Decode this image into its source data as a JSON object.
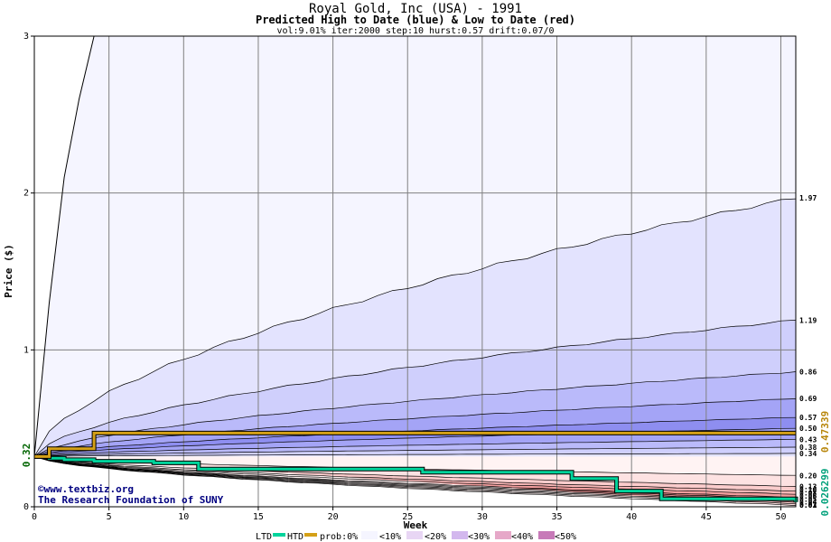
{
  "chart_data": {
    "type": "area",
    "title": "Royal Gold, Inc (USA) - 1991",
    "subtitle": "Predicted High to Date (blue) &  Low to Date (red)",
    "params": "vol:9.01% iter:2000 step:10 hurst:0.57 drift:0.07/0",
    "xlabel": "Week",
    "ylabel": "Price ($)",
    "xlim": [
      0,
      51
    ],
    "ylim": [
      0,
      3
    ],
    "x_ticks": [
      0,
      5,
      10,
      15,
      20,
      25,
      30,
      35,
      40,
      45,
      50
    ],
    "y_ticks": [
      0,
      1,
      2,
      3
    ],
    "grid": true,
    "start_price": 0.32,
    "start_label": "0.32",
    "htd_final_label": "0.47339",
    "ltd_final_label": "0.026299",
    "upper_labels": [
      "1.97",
      "1.19",
      "0.86",
      "0.69",
      "0.57",
      "0.50",
      "0.43",
      "0.38",
      "0.34"
    ],
    "lower_labels": [
      "0.20",
      "0.13",
      "0.10",
      "0.08",
      "0.06",
      "0.05",
      "0.04",
      "0.03",
      "0.02",
      "0.01"
    ],
    "upper_finals": [
      1.97,
      1.19,
      0.86,
      0.69,
      0.57,
      0.5,
      0.43,
      0.38,
      0.34
    ],
    "lower_finals": [
      0.2,
      0.13,
      0.1,
      0.08,
      0.06,
      0.05,
      0.04,
      0.03,
      0.02,
      0.01
    ],
    "outer_high_curve": {
      "x": [
        0,
        1,
        2,
        3,
        4
      ],
      "y": [
        0.32,
        1.3,
        2.1,
        2.6,
        3.0
      ]
    },
    "htd_series": {
      "x": [
        0,
        1,
        2,
        3,
        3.7,
        4,
        25,
        51
      ],
      "y": [
        0.32,
        0.37,
        0.37,
        0.37,
        0.37,
        0.47,
        0.47,
        0.47
      ]
    },
    "ltd_series": {
      "x": [
        0,
        1,
        2,
        3,
        4,
        8,
        11,
        26,
        36,
        39,
        42,
        51
      ],
      "y": [
        0.32,
        0.31,
        0.3,
        0.3,
        0.29,
        0.28,
        0.24,
        0.22,
        0.18,
        0.1,
        0.05,
        0.03
      ]
    },
    "band_colors_upper": [
      "#f5f5ff",
      "#e3e3fe",
      "#cfcffc",
      "#babafa",
      "#a4a4f6",
      "#8e8ef0",
      "#a4a4f6",
      "#babafa",
      "#cfcffc",
      "#e3e3fe"
    ],
    "band_colors_lower": [
      "#fff3f3",
      "#fde2e2",
      "#fbcccc",
      "#f7b6b6",
      "#f29e9e",
      "#ec8888",
      "#f29e9e",
      "#f7b6b6",
      "#fbcccc",
      "#fde2e2",
      "#fff3f3"
    ],
    "htd_color": "#d4a017",
    "ltd_color": "#00d49c",
    "legend": {
      "ltd": "LTD",
      "htd": "HTD",
      "prob": "prob:0%",
      "items": [
        {
          "label": "<10%",
          "color": "#f5f5ff"
        },
        {
          "label": "<20%",
          "color": "#e8d6f4"
        },
        {
          "label": "<30%",
          "color": "#d3b8ee"
        },
        {
          "label": "<40%",
          "color": "#e6a8c8"
        },
        {
          "label": "<50%",
          "color": "#c77ab8"
        }
      ]
    }
  },
  "credits": {
    "line1": "©www.textbiz.org",
    "line2": "The Research Foundation of SUNY"
  }
}
